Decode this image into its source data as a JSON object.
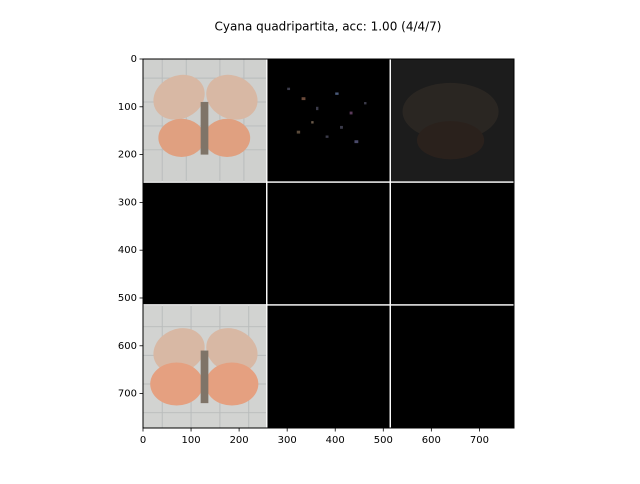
{
  "chart_data": {
    "type": "image",
    "title": "Cyana quadripartita, acc: 1.00 (4/4/7)",
    "xlim": [
      0,
      772
    ],
    "ylim": [
      772,
      0
    ],
    "xticks": [
      0,
      100,
      200,
      300,
      400,
      500,
      600,
      700
    ],
    "yticks": [
      0,
      100,
      200,
      300,
      400,
      500,
      600,
      700
    ]
  }
}
